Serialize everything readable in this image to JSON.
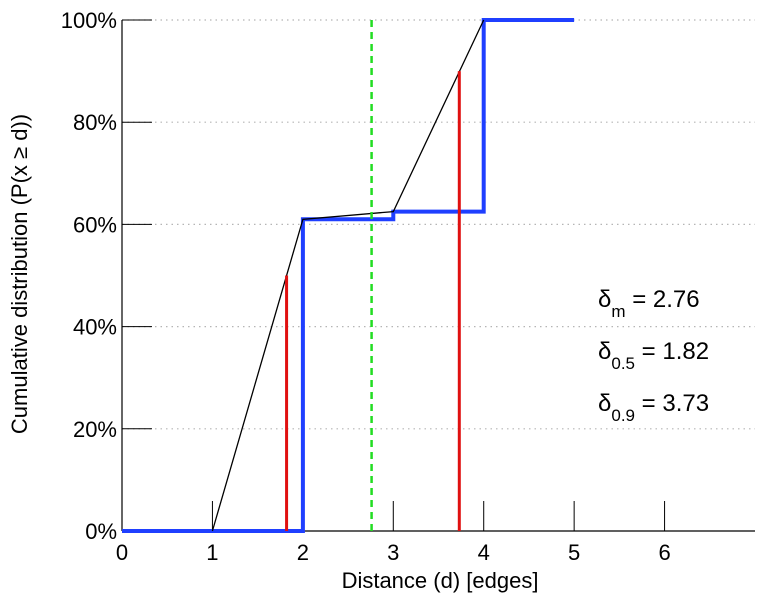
{
  "chart_data": {
    "type": "line",
    "title": "",
    "xlabel": "Distance (d) [edges]",
    "ylabel": "Cumulative distribution (P(x ≥ d))",
    "xlim": [
      0,
      7
    ],
    "ylim": [
      0,
      100
    ],
    "x_ticks": [
      0,
      1,
      2,
      3,
      4,
      5,
      6
    ],
    "x_tick_labels": [
      "0",
      "1",
      "2",
      "3",
      "4",
      "5",
      "6"
    ],
    "y_ticks": [
      0,
      20,
      40,
      60,
      80,
      100
    ],
    "y_tick_labels": [
      "0%",
      "20%",
      "40%",
      "60%",
      "80%",
      "100%"
    ],
    "y_unit": "%",
    "grid": {
      "y": "dotted",
      "x": false
    },
    "series": [
      {
        "style": "step",
        "color": "#1f3fff",
        "points": [
          [
            0,
            0
          ],
          [
            2,
            0
          ],
          [
            2,
            61
          ],
          [
            3,
            61
          ],
          [
            3,
            62.5
          ],
          [
            4,
            62.5
          ],
          [
            4,
            100
          ],
          [
            5,
            100
          ]
        ]
      },
      {
        "style": "line",
        "color": "#000000",
        "points": [
          [
            1,
            0
          ],
          [
            2,
            61
          ],
          [
            3,
            62.5
          ],
          [
            4,
            100
          ]
        ]
      }
    ],
    "vertical_markers": [
      {
        "x": 1.82,
        "y_top": 50,
        "color": "#e01010",
        "style": "solid"
      },
      {
        "x": 3.73,
        "y_top": 90,
        "color": "#e01010",
        "style": "solid"
      },
      {
        "x": 2.76,
        "y_top": 100,
        "color": "#22dd22",
        "style": "dashed"
      }
    ],
    "annotations": [
      {
        "symbol": "δ",
        "subscript": "m",
        "text": " = 2.76"
      },
      {
        "symbol": "δ",
        "subscript": "0.5",
        "text": " = 1.82"
      },
      {
        "symbol": "δ",
        "subscript": "0.9",
        "text": " = 3.73"
      }
    ]
  }
}
